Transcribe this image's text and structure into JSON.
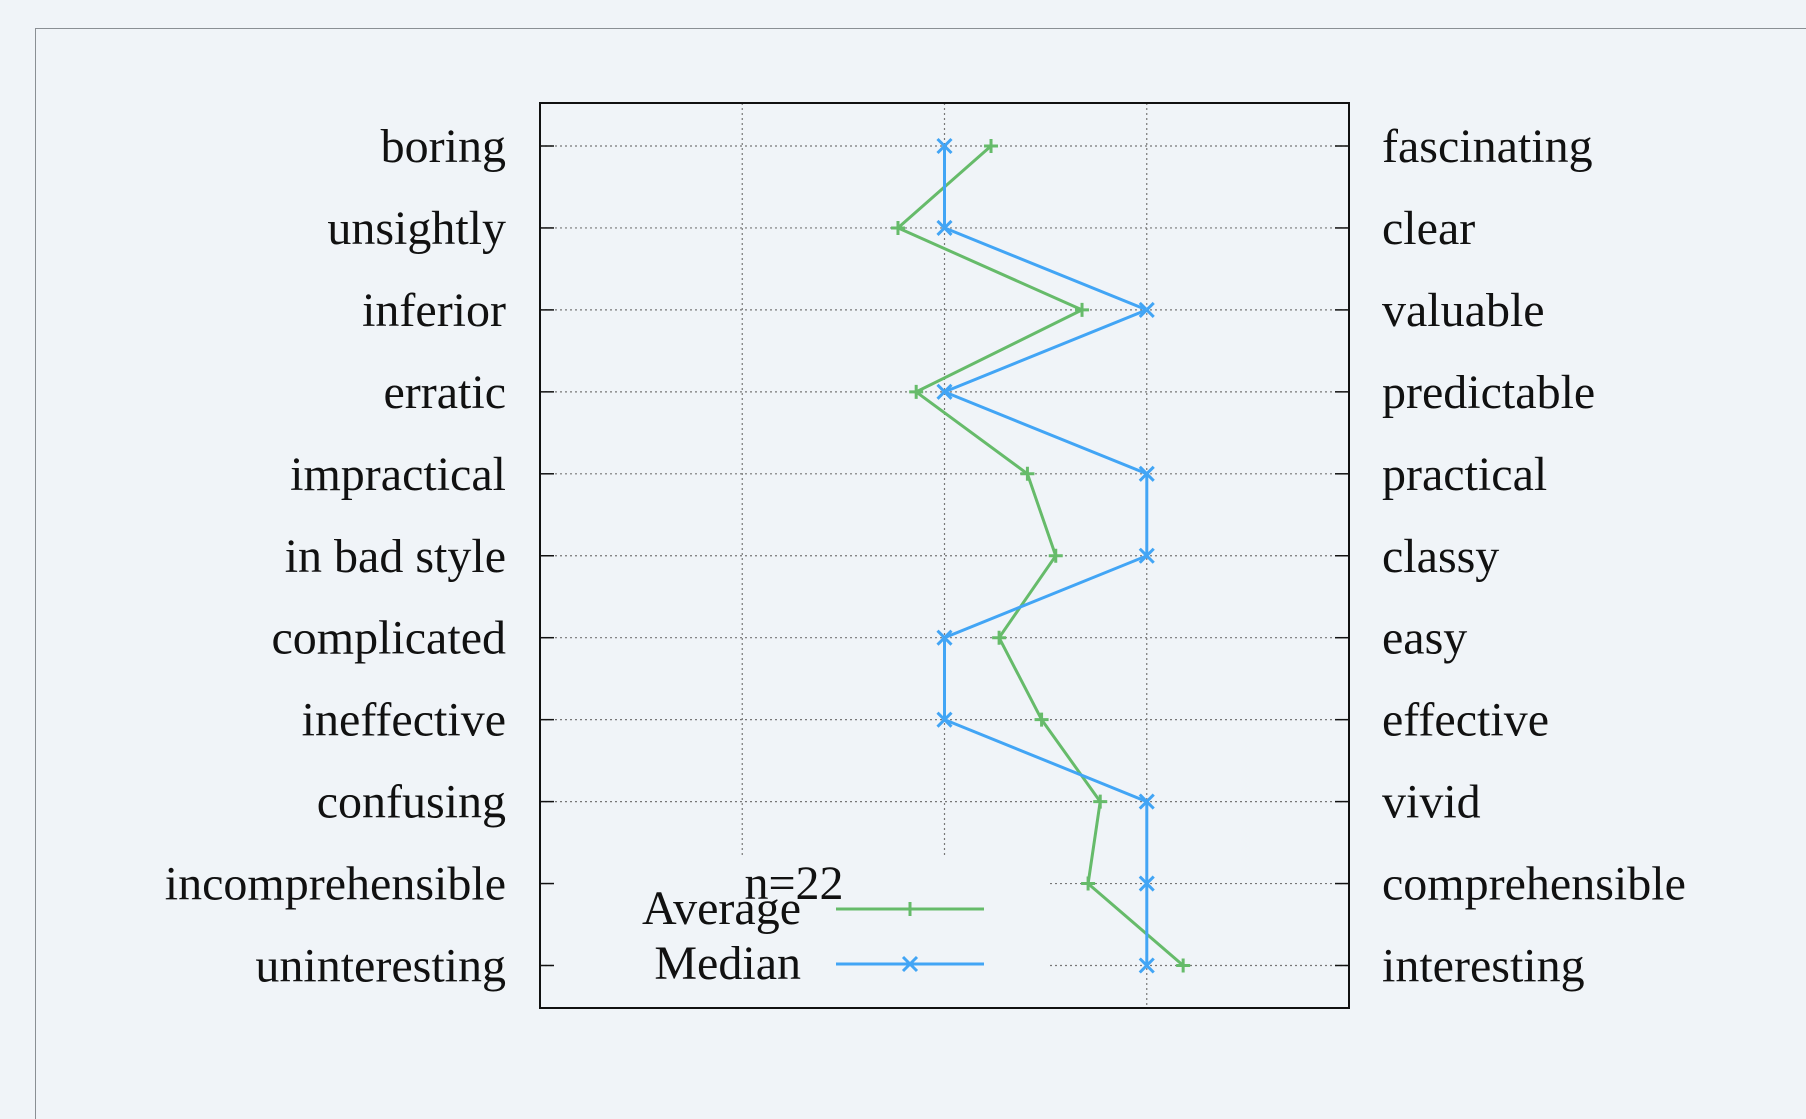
{
  "chart_data": {
    "type": "line",
    "orientation": "vertical-profile",
    "left_labels": [
      "boring",
      "unsightly",
      "inferior",
      "erratic",
      "impractical",
      "in bad style",
      "complicated",
      "ineffective",
      "confusing",
      "incomprehensible",
      "uninteresting"
    ],
    "right_labels": [
      "fascinating",
      "clear",
      "valuable",
      "predictable",
      "practical",
      "classy",
      "easy",
      "effective",
      "vivid",
      "comprehensible",
      "interesting"
    ],
    "xlim": [
      -2,
      2
    ],
    "grid": true,
    "annotation": "n=22",
    "legend_position": "bottom-left",
    "series": [
      {
        "name": "Average",
        "color": "#66bb6a",
        "marker": "plus",
        "values": [
          0.23,
          -0.23,
          0.68,
          -0.14,
          0.41,
          0.55,
          0.27,
          0.48,
          0.77,
          0.71,
          1.18
        ]
      },
      {
        "name": "Median",
        "color": "#42a5f5",
        "marker": "x",
        "values": [
          0,
          0,
          1,
          0,
          1,
          1,
          0,
          0,
          1,
          1,
          1
        ]
      }
    ]
  }
}
